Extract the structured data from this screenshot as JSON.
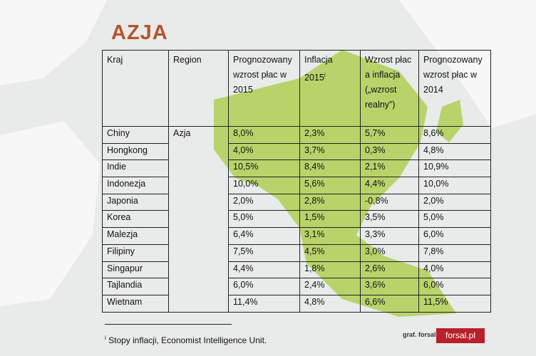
{
  "title": "AZJA",
  "table": {
    "headers": [
      {
        "text": "Kraj"
      },
      {
        "text": "Region"
      },
      {
        "text": "Prognozowany wzrost płac w 2015"
      },
      {
        "text": "Inflacja 2015",
        "sup": "i"
      },
      {
        "text": "Wzrost płac a inflacja („wzrost realny”)"
      },
      {
        "text": "Prognozowany wzrost płac w 2014"
      }
    ],
    "region": "Azja",
    "rows": [
      [
        "Chiny",
        "8,0%",
        "2,3%",
        "5,7%",
        "8,6%"
      ],
      [
        "Hongkong",
        "4,0%",
        "3,7%",
        "0,3%",
        "4,8%"
      ],
      [
        "Indie",
        "10,5%",
        "8,4%",
        "2,1%",
        "10,9%"
      ],
      [
        "Indonezja",
        "10,0%",
        "5,6%",
        "4,4%",
        "10,0%"
      ],
      [
        "Japonia",
        "2,0%",
        "2,8%",
        "-0,8%",
        "2,0%"
      ],
      [
        "Korea",
        "5,0%",
        "1,5%",
        "3,5%",
        "5,0%"
      ],
      [
        "Malezja",
        "6,4%",
        "3,1%",
        "3,3%",
        "6,0%"
      ],
      [
        "Filipiny",
        "7,5%",
        "4,5%",
        "3,0%",
        "7,8%"
      ],
      [
        "Singapur",
        "4,4%",
        "1,8%",
        "2,6%",
        "4,0%"
      ],
      [
        "Tajlandia",
        "6,0%",
        "2,4%",
        "3,6%",
        "6,0%"
      ],
      [
        "Wietnam",
        "11,4%",
        "4,8%",
        "6,6%",
        "11,5%"
      ]
    ]
  },
  "footnote": {
    "marker": "i",
    "text": "Stopy inflacji, Economist Intelligence Unit."
  },
  "credit": "graf. forsal.pl",
  "logo": "forsal.pl"
}
